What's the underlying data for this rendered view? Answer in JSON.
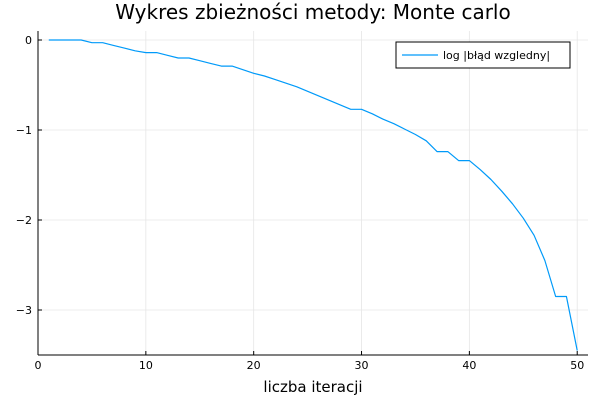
{
  "chart_data": {
    "type": "line",
    "title": "Wykres zbieżności metody: Monte carlo",
    "xlabel": "liczba iteracji",
    "ylabel": "",
    "xlim": [
      0,
      51
    ],
    "ylim": [
      -3.5,
      0.1
    ],
    "xticks": [
      0,
      10,
      20,
      30,
      40,
      50
    ],
    "yticks": [
      0,
      -1,
      -2,
      -3
    ],
    "ytick_labels": [
      "0",
      "−1",
      "−2",
      "−3"
    ],
    "grid": true,
    "legend_position": "top-right",
    "series": [
      {
        "name": "log |błąd wzgledny|",
        "color": "#009af9",
        "x": [
          1,
          2,
          3,
          4,
          5,
          6,
          7,
          8,
          9,
          10,
          11,
          12,
          13,
          14,
          15,
          16,
          17,
          18,
          19,
          20,
          21,
          22,
          23,
          24,
          25,
          26,
          27,
          28,
          29,
          30,
          31,
          32,
          33,
          34,
          35,
          36,
          37,
          38,
          39,
          40,
          41,
          42,
          43,
          44,
          45,
          46,
          47,
          48,
          49,
          50
        ],
        "y": [
          0,
          0,
          0,
          0,
          -0.03,
          -0.03,
          -0.06,
          -0.09,
          -0.12,
          -0.14,
          -0.14,
          -0.17,
          -0.2,
          -0.2,
          -0.23,
          -0.26,
          -0.29,
          -0.29,
          -0.33,
          -0.37,
          -0.4,
          -0.44,
          -0.48,
          -0.52,
          -0.57,
          -0.62,
          -0.67,
          -0.72,
          -0.77,
          -0.77,
          -0.82,
          -0.88,
          -0.93,
          -0.99,
          -1.05,
          -1.12,
          -1.24,
          -1.24,
          -1.34,
          -1.34,
          -1.44,
          -1.55,
          -1.68,
          -1.82,
          -1.98,
          -2.17,
          -2.45,
          -2.85,
          -2.85,
          -3.45
        ]
      }
    ]
  }
}
